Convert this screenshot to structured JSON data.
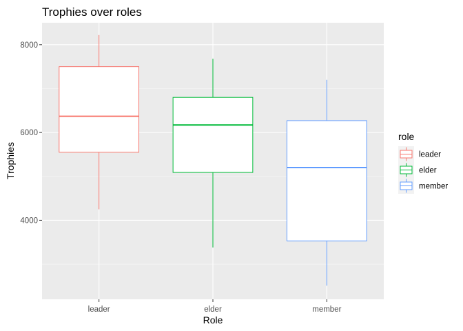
{
  "chart_data": {
    "type": "boxplot",
    "title": "Trophies over roles",
    "xlabel": "Role",
    "ylabel": "Trophies",
    "ylim": [
      2200,
      8500
    ],
    "yticks": [
      4000,
      6000,
      8000
    ],
    "categories": [
      "leader",
      "elder",
      "member"
    ],
    "grid": true,
    "legend": {
      "title": "role",
      "placement": "right",
      "entries": [
        "leader",
        "elder",
        "member"
      ]
    },
    "series": [
      {
        "name": "leader",
        "color": "#F8766D",
        "min": 4250,
        "q1": 5550,
        "median": 6370,
        "q3": 7500,
        "max": 8220
      },
      {
        "name": "elder",
        "color": "#00BA38",
        "min": 3380,
        "q1": 5090,
        "median": 6170,
        "q3": 6800,
        "max": 7680
      },
      {
        "name": "member",
        "color": "#619CFF",
        "min": 2510,
        "q1": 3530,
        "median": 5200,
        "q3": 6270,
        "max": 7200
      }
    ]
  }
}
